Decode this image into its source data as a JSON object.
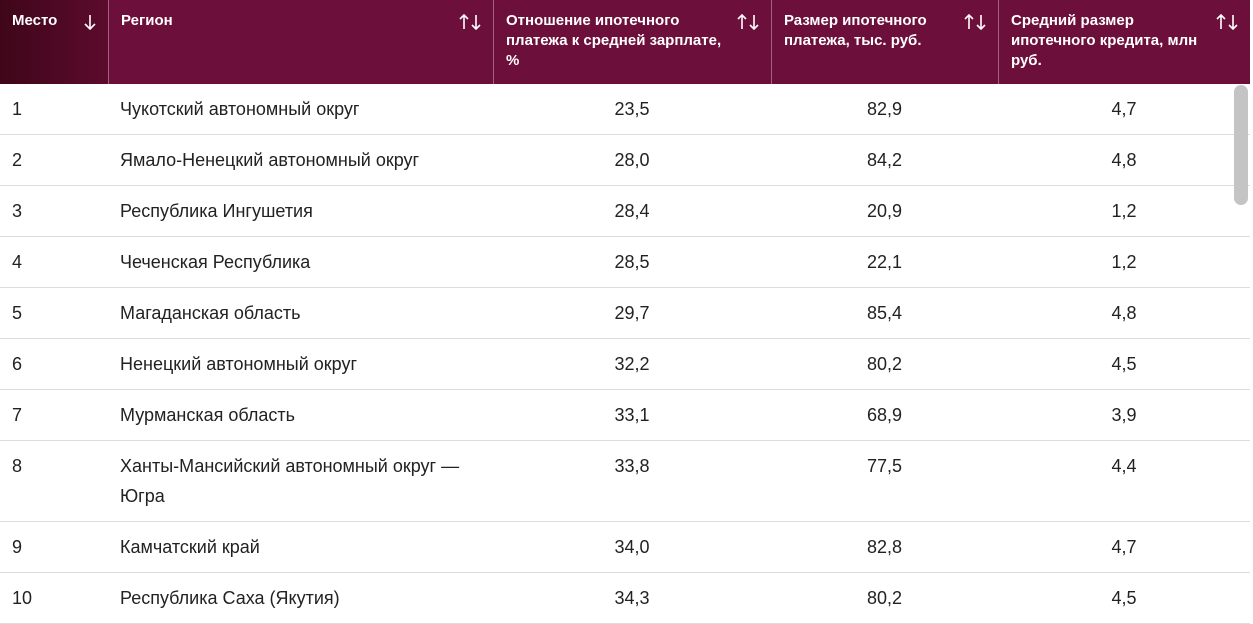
{
  "table": {
    "columns": [
      "Место",
      "Регион",
      "Отношение ипотечного платежа к средней зарплате, %",
      "Размер ипотечного платежа, тыс. руб.",
      "Средний размер ипотечного кредита, млн руб."
    ],
    "rows": [
      [
        "1",
        "Чукотский автономный округ",
        "23,5",
        "82,9",
        "4,7"
      ],
      [
        "2",
        "Ямало-Ненецкий автономный округ",
        "28,0",
        "84,2",
        "4,8"
      ],
      [
        "3",
        "Республика Ингушетия",
        "28,4",
        "20,9",
        "1,2"
      ],
      [
        "4",
        "Чеченская Республика",
        "28,5",
        "22,1",
        "1,2"
      ],
      [
        "5",
        "Магаданская область",
        "29,7",
        "85,4",
        "4,8"
      ],
      [
        "6",
        "Ненецкий автономный округ",
        "32,2",
        "80,2",
        "4,5"
      ],
      [
        "7",
        "Мурманская область",
        "33,1",
        "68,9",
        "3,9"
      ],
      [
        "8",
        "Ханты-Мансийский автономный округ — Югра",
        "33,8",
        "77,5",
        "4,4"
      ],
      [
        "9",
        "Камчатский край",
        "34,0",
        "82,8",
        "4,7"
      ],
      [
        "10",
        "Республика Саха (Якутия)",
        "34,3",
        "80,2",
        "4,5"
      ]
    ]
  }
}
